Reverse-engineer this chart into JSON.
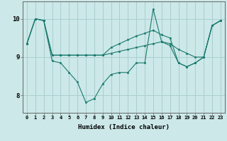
{
  "xlabel": "Humidex (Indice chaleur)",
  "bg_color": "#cce8e8",
  "grid_color": "#aacfcf",
  "line_color": "#1a7a6e",
  "marker_color": "#1a7a6e",
  "xlim": [
    -0.5,
    23.5
  ],
  "ylim": [
    7.55,
    10.45
  ],
  "yticks": [
    8,
    9,
    10
  ],
  "xticks": [
    0,
    1,
    2,
    3,
    4,
    5,
    6,
    7,
    8,
    9,
    10,
    11,
    12,
    13,
    14,
    15,
    16,
    17,
    18,
    19,
    20,
    21,
    22,
    23
  ],
  "series": [
    [
      9.35,
      10.0,
      9.95,
      8.9,
      8.85,
      8.6,
      8.35,
      7.82,
      7.92,
      8.3,
      8.55,
      8.6,
      8.6,
      8.85,
      8.85,
      10.25,
      9.4,
      9.3,
      8.85,
      8.75,
      8.85,
      9.0,
      9.82,
      9.95
    ],
    [
      9.35,
      10.0,
      9.95,
      9.05,
      9.05,
      9.05,
      9.05,
      9.05,
      9.05,
      9.05,
      9.1,
      9.15,
      9.2,
      9.25,
      9.3,
      9.35,
      9.4,
      9.35,
      9.2,
      9.1,
      9.0,
      9.0,
      9.82,
      9.95
    ],
    [
      9.35,
      10.0,
      9.95,
      9.05,
      9.05,
      9.05,
      9.05,
      9.05,
      9.05,
      9.05,
      9.25,
      9.35,
      9.45,
      9.55,
      9.62,
      9.7,
      9.58,
      9.5,
      8.85,
      8.75,
      8.85,
      9.0,
      9.82,
      9.95
    ]
  ]
}
